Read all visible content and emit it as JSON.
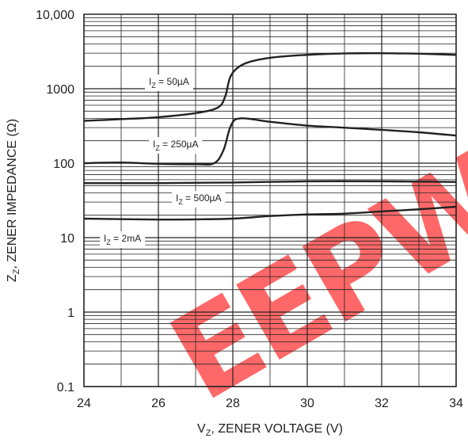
{
  "chart_data": {
    "type": "line",
    "xlabel": {
      "main": "V",
      "sub": "Z",
      "rest": ", ZENER VOLTAGE (V)"
    },
    "ylabel": {
      "main": "Z",
      "sub": "Z",
      "rest": ", ZENER IMPEDANCE (Ω)"
    },
    "xlim": [
      24,
      34
    ],
    "ylim": [
      0.1,
      10000
    ],
    "yscale": "log",
    "grid": true,
    "x_ticks": [
      24,
      26,
      28,
      30,
      32,
      34
    ],
    "x_tick_labels": [
      "24",
      "26",
      "28",
      "30",
      "32",
      "34"
    ],
    "y_ticks": [
      0.1,
      1,
      10,
      100,
      1000,
      10000
    ],
    "y_tick_labels": [
      "0.1",
      "1",
      "10",
      "100",
      "1000",
      "10,000"
    ],
    "series": [
      {
        "name": "I_Z = 50µA",
        "label": {
          "pre": "I",
          "sub": "Z",
          "post": " = 50µA"
        },
        "points": [
          [
            24,
            370
          ],
          [
            25,
            390
          ],
          [
            26,
            415
          ],
          [
            27,
            470
          ],
          [
            27.6,
            560
          ],
          [
            27.8,
            800
          ],
          [
            27.95,
            1500
          ],
          [
            28.3,
            2150
          ],
          [
            29,
            2600
          ],
          [
            30,
            2850
          ],
          [
            31,
            2980
          ],
          [
            32,
            3000
          ],
          [
            33,
            2950
          ],
          [
            34,
            2850
          ]
        ]
      },
      {
        "name": "I_Z = 250µA",
        "label": {
          "pre": "I",
          "sub": "Z",
          "post": " = 250µA"
        },
        "points": [
          [
            24,
            100
          ],
          [
            25,
            102
          ],
          [
            26,
            98
          ],
          [
            27,
            97
          ],
          [
            27.5,
            100
          ],
          [
            27.75,
            150
          ],
          [
            27.95,
            320
          ],
          [
            28.2,
            400
          ],
          [
            29,
            360
          ],
          [
            30,
            320
          ],
          [
            31,
            300
          ],
          [
            32,
            280
          ],
          [
            33,
            260
          ],
          [
            34,
            235
          ]
        ]
      },
      {
        "name": "I_Z = 500µA",
        "label": {
          "pre": "I",
          "sub": "Z",
          "post": " = 500µA"
        },
        "points": [
          [
            24,
            54
          ],
          [
            26,
            54
          ],
          [
            28,
            55
          ],
          [
            30,
            57
          ],
          [
            32,
            57
          ],
          [
            34,
            56
          ]
        ]
      },
      {
        "name": "I_Z = 2mA",
        "label": {
          "pre": "I",
          "sub": "Z",
          "post": " = 2mA"
        },
        "points": [
          [
            24,
            18
          ],
          [
            26,
            17.5
          ],
          [
            27,
            17.6
          ],
          [
            28,
            18
          ],
          [
            29,
            19.5
          ],
          [
            30,
            20.5
          ],
          [
            31,
            21
          ],
          [
            32,
            22.5
          ],
          [
            33,
            24
          ],
          [
            34,
            26
          ]
        ]
      }
    ],
    "watermark": {
      "text": "EEPW",
      "color": "#ff3b3b"
    }
  }
}
